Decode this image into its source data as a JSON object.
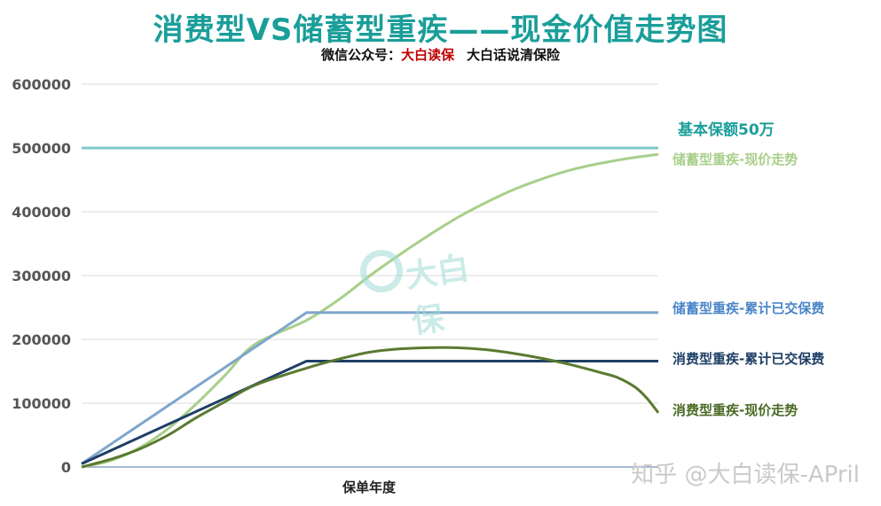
{
  "title": "消费型VS储蓄型重疾——现金价值走势图",
  "subtitle": {
    "prefix": "微信公众号：",
    "highlight": "大白读保",
    "suffix": "大白话说清保险"
  },
  "watermark": "知乎 @大白读保-APril",
  "logo_text": "大白保",
  "chart_data": {
    "type": "line",
    "xlabel": "保单年度",
    "ylabel": "",
    "ylim": [
      0,
      600000
    ],
    "yticks": [
      0,
      100000,
      200000,
      300000,
      400000,
      500000,
      600000
    ],
    "xlim": [
      0,
      100
    ],
    "grid": true,
    "legend": "right (labels next to line ends)",
    "series": [
      {
        "name": "基本保额50万",
        "color": "#7fc8c8",
        "label_color": "#1a9e9a",
        "points": [
          [
            0,
            500000
          ],
          [
            100,
            500000
          ]
        ]
      },
      {
        "name": "储蓄型重疾-现价走势",
        "color": "#a8cf8a",
        "label_color": "#a8cf8a",
        "points": [
          [
            0,
            0
          ],
          [
            5,
            10000
          ],
          [
            10,
            30000
          ],
          [
            15,
            60000
          ],
          [
            20,
            100000
          ],
          [
            25,
            145000
          ],
          [
            30,
            192000
          ],
          [
            39,
            230000
          ],
          [
            45,
            265000
          ],
          [
            50,
            300000
          ],
          [
            55,
            332000
          ],
          [
            60,
            362000
          ],
          [
            65,
            390000
          ],
          [
            70,
            414000
          ],
          [
            75,
            435000
          ],
          [
            80,
            452000
          ],
          [
            85,
            466000
          ],
          [
            90,
            476000
          ],
          [
            95,
            484000
          ],
          [
            100,
            490000
          ]
        ]
      },
      {
        "name": "储蓄型重疾-累计已交保费",
        "color": "#7ea6cc",
        "label_color": "#4a86c8",
        "points": [
          [
            0,
            5000
          ],
          [
            39,
            242000
          ],
          [
            100,
            242000
          ]
        ]
      },
      {
        "name": "消费型重疾-累计已交保费",
        "color": "#1e3f66",
        "label_color": "#1e3f66",
        "points": [
          [
            0,
            5000
          ],
          [
            39,
            166000
          ],
          [
            100,
            166000
          ]
        ]
      },
      {
        "name": "消费型重疾-现价走势",
        "color": "#5a7a30",
        "label_color": "#4a6a25",
        "points": [
          [
            0,
            0
          ],
          [
            5,
            12000
          ],
          [
            10,
            28000
          ],
          [
            15,
            50000
          ],
          [
            20,
            78000
          ],
          [
            25,
            103000
          ],
          [
            30,
            128000
          ],
          [
            39,
            155000
          ],
          [
            45,
            170000
          ],
          [
            50,
            180000
          ],
          [
            55,
            185000
          ],
          [
            60,
            187000
          ],
          [
            65,
            187000
          ],
          [
            70,
            184000
          ],
          [
            75,
            178000
          ],
          [
            80,
            170000
          ],
          [
            85,
            160000
          ],
          [
            90,
            148000
          ],
          [
            93,
            140000
          ],
          [
            96,
            125000
          ],
          [
            98,
            108000
          ],
          [
            100,
            85000
          ]
        ]
      }
    ]
  }
}
